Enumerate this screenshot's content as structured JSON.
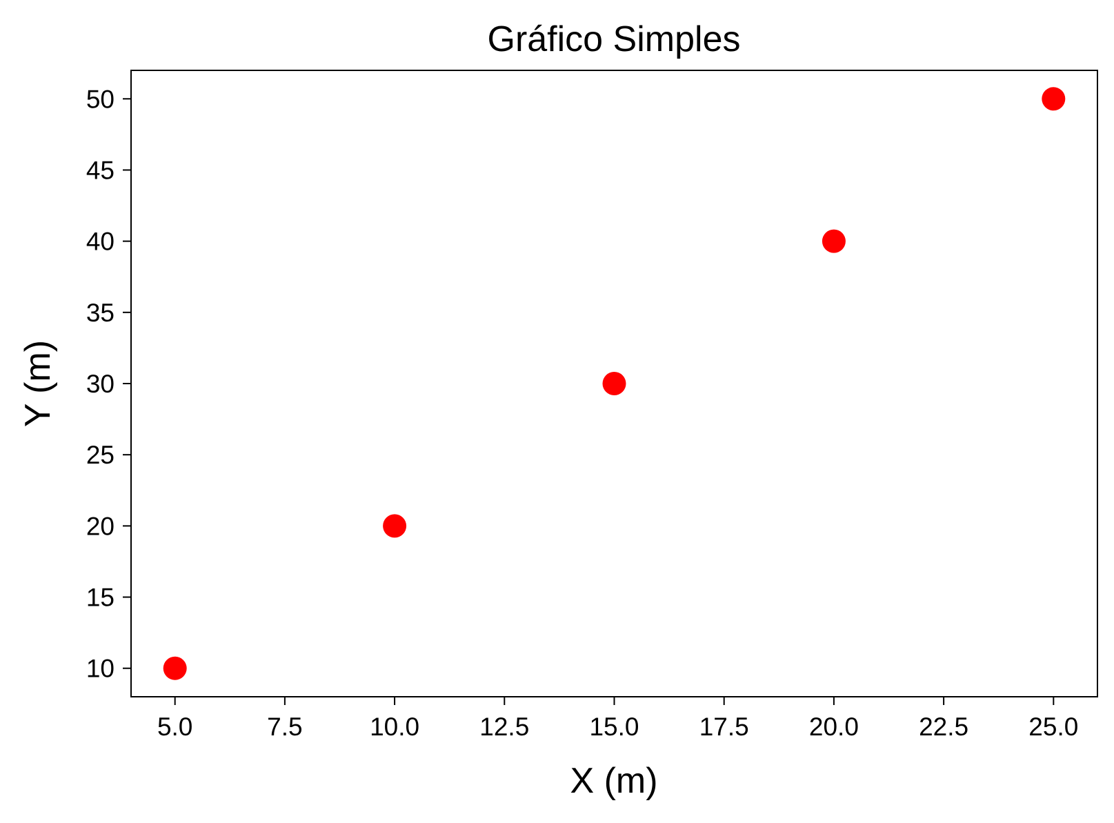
{
  "chart_data": {
    "type": "scatter",
    "title": "Gráfico Simples",
    "xlabel": "X (m)",
    "ylabel": "Y (m)",
    "xlim": [
      4.0,
      26.0
    ],
    "ylim": [
      8.0,
      52.0
    ],
    "x_ticks": [
      5.0,
      7.5,
      10.0,
      12.5,
      15.0,
      17.5,
      20.0,
      22.5,
      25.0
    ],
    "x_tick_labels": [
      "5.0",
      "7.5",
      "10.0",
      "12.5",
      "15.0",
      "17.5",
      "20.0",
      "22.5",
      "25.0"
    ],
    "y_ticks": [
      10,
      15,
      20,
      25,
      30,
      35,
      40,
      45,
      50
    ],
    "y_tick_labels": [
      "10",
      "15",
      "20",
      "25",
      "30",
      "35",
      "40",
      "45",
      "50"
    ],
    "grid": false,
    "legend": false,
    "series": [
      {
        "color": "#ff0000",
        "marker": "circle",
        "x": [
          5,
          10,
          15,
          20,
          25
        ],
        "y": [
          10,
          20,
          30,
          40,
          50
        ]
      }
    ]
  }
}
